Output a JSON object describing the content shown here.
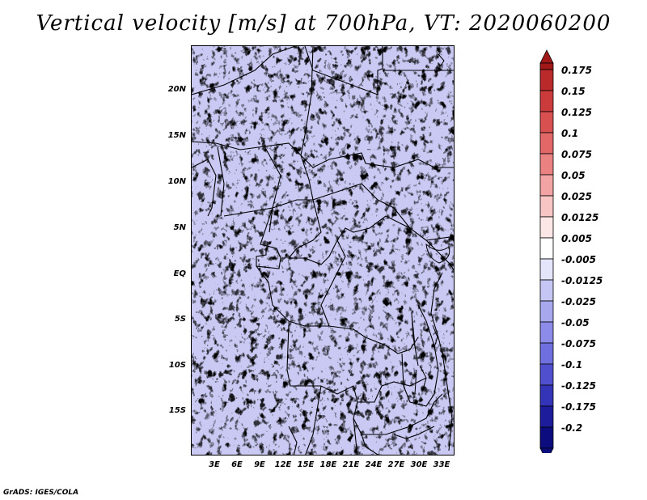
{
  "title": "Vertical velocity [m/s] at 700hPa, VT: 2020060200",
  "credit": "GrADS: IGES/COLA",
  "map": {
    "lat_labels": [
      "20N",
      "15N",
      "10N",
      "5N",
      "EQ",
      "5S",
      "10S",
      "15S"
    ],
    "lon_labels": [
      "3E",
      "6E",
      "9E",
      "12E",
      "15E",
      "18E",
      "21E",
      "24E",
      "27E",
      "30E",
      "33E"
    ]
  },
  "colorbar": {
    "labels": [
      "0.175",
      "0.15",
      "0.125",
      "0.1",
      "0.075",
      "0.05",
      "0.025",
      "0.0125",
      "0.005",
      "-0.005",
      "-0.0125",
      "-0.025",
      "-0.05",
      "-0.075",
      "-0.1",
      "-0.125",
      "-0.175",
      "-0.2"
    ],
    "colors": [
      "#a01818",
      "#bb2a2a",
      "#cc3b3b",
      "#d85050",
      "#e26767",
      "#ea8282",
      "#f2a3a3",
      "#f8c5c5",
      "#fde6e6",
      "#ffffff",
      "#e4e4fb",
      "#c6c6f4",
      "#a8a8ef",
      "#8c8ce8",
      "#6f6fdf",
      "#5050cf",
      "#3434b8",
      "#1d1d9c",
      "#0c0c7e"
    ],
    "top_arrow_color": "#a01818",
    "bottom_arrow_color": "#0c0c7e"
  }
}
